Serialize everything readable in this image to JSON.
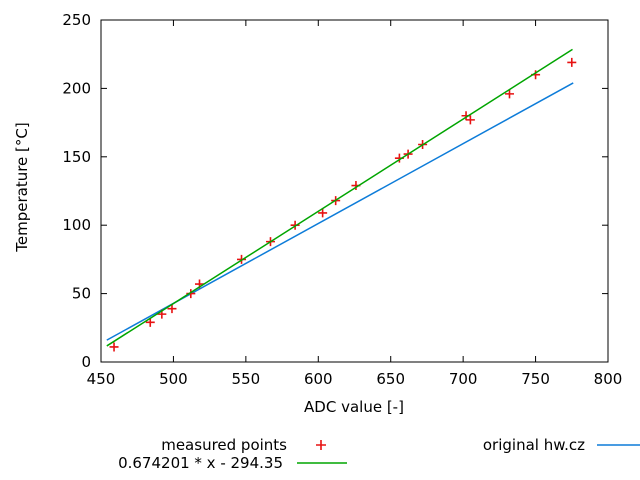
{
  "chart_data": {
    "type": "scatter",
    "title": "",
    "xlabel": "ADC value [-]",
    "ylabel": "Temperature [°C]",
    "xlim": [
      450,
      800
    ],
    "ylim": [
      0,
      250
    ],
    "xticks": [
      450,
      500,
      550,
      600,
      650,
      700,
      750,
      800
    ],
    "yticks": [
      0,
      50,
      100,
      150,
      200,
      250
    ],
    "grid": false,
    "legend_position": "below",
    "frame_color": "#000000",
    "series": [
      {
        "name": "measured points",
        "type": "scatter",
        "marker": "plus",
        "color": "#e71212",
        "points": [
          [
            459,
            11
          ],
          [
            484,
            29
          ],
          [
            492,
            35
          ],
          [
            499,
            39
          ],
          [
            512,
            50
          ],
          [
            518,
            57
          ],
          [
            547,
            75
          ],
          [
            567,
            88
          ],
          [
            584,
            100
          ],
          [
            603,
            109
          ],
          [
            612,
            118
          ],
          [
            626,
            129
          ],
          [
            656,
            149
          ],
          [
            662,
            152
          ],
          [
            672,
            159
          ],
          [
            702,
            180
          ],
          [
            705,
            177
          ],
          [
            732,
            196
          ],
          [
            750,
            210
          ],
          [
            775,
            219
          ]
        ]
      },
      {
        "name": "0.674201 * x - 294.35",
        "type": "line",
        "color": "#00a500",
        "fn": {
          "slope": 0.674201,
          "intercept": -294.35
        },
        "x_range": [
          454,
          775.5
        ]
      },
      {
        "name": "original hw.cz",
        "type": "line",
        "color": "#0d7cd9",
        "points": [
          [
            454,
            16
          ],
          [
            776,
            204
          ]
        ]
      }
    ]
  }
}
